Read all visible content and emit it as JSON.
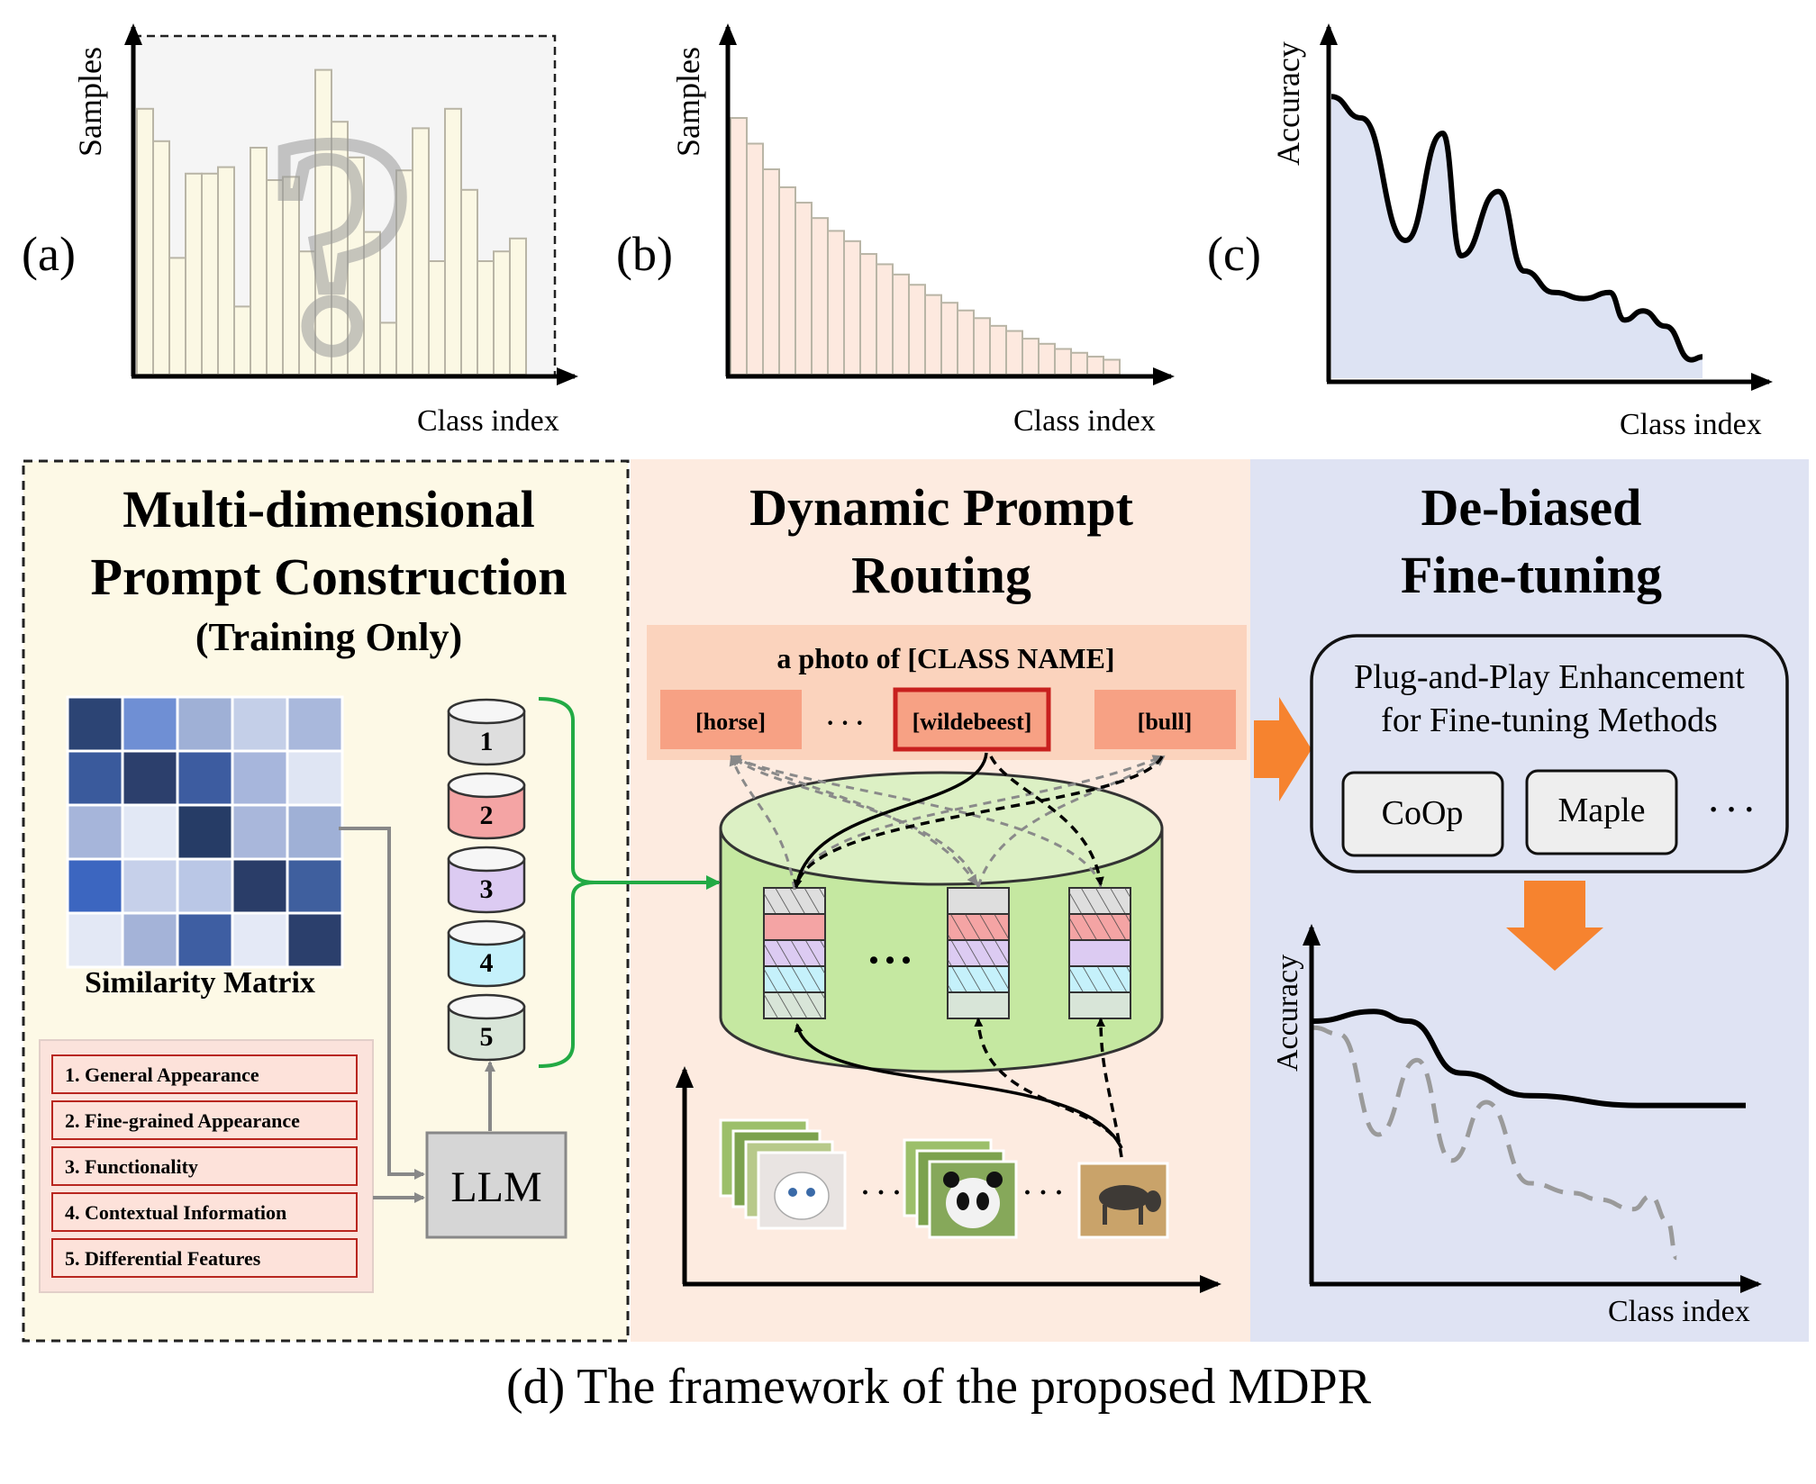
{
  "charts": {
    "a": {
      "panel_label": "(a)",
      "ylabel": "Samples",
      "xlabel": "Class index"
    },
    "b": {
      "panel_label": "(b)",
      "ylabel": "Samples",
      "xlabel": "Class index"
    },
    "c": {
      "panel_label": "(c)",
      "ylabel": "Accuracy",
      "xlabel": "Class index"
    }
  },
  "chart_data": [
    {
      "type": "bar",
      "panel": "(a)",
      "title": "",
      "xlabel": "Class index",
      "ylabel": "Samples",
      "values": [
        0.82,
        0.72,
        0.36,
        0.62,
        0.62,
        0.64,
        0.21,
        0.7,
        0.6,
        0.61,
        0.38,
        0.94,
        0.78,
        0.67,
        0.44,
        0.16,
        0.63,
        0.76,
        0.35,
        0.82,
        0.57,
        0.35,
        0.38,
        0.42
      ],
      "note_icon": "question-mark-icon"
    },
    {
      "type": "bar",
      "panel": "(b)",
      "title": "",
      "xlabel": "Class index",
      "ylabel": "Samples",
      "values": [
        1.0,
        0.9,
        0.8,
        0.73,
        0.67,
        0.61,
        0.56,
        0.52,
        0.47,
        0.43,
        0.39,
        0.35,
        0.31,
        0.28,
        0.25,
        0.22,
        0.19,
        0.17,
        0.14,
        0.12,
        0.1,
        0.085,
        0.07,
        0.058
      ]
    },
    {
      "type": "area",
      "panel": "(c)",
      "title": "",
      "xlabel": "Class index",
      "ylabel": "Accuracy",
      "x": [
        0,
        0.08,
        0.2,
        0.3,
        0.35,
        0.45,
        0.52,
        0.6,
        0.68,
        0.75,
        0.79,
        0.84,
        0.9,
        0.97,
        1.0
      ],
      "y": [
        0.92,
        0.85,
        0.45,
        0.8,
        0.4,
        0.61,
        0.35,
        0.28,
        0.26,
        0.28,
        0.19,
        0.22,
        0.17,
        0.06,
        0.07
      ]
    }
  ],
  "sections": {
    "left": {
      "title_line1": "Multi-dimensional",
      "title_line2": "Prompt Construction",
      "subtitle": "(Training Only)",
      "matrix_label": "Similarity Matrix",
      "prompts": [
        "1. General Appearance",
        "2. Fine-grained Appearance",
        "3. Functionality",
        "4. Contextual Information",
        "5. Differential Features"
      ],
      "llm_label": "LLM",
      "db_numbers": [
        "1",
        "2",
        "3",
        "4",
        "5"
      ]
    },
    "middle": {
      "title_line1": "Dynamic Prompt",
      "title_line2": "Routing",
      "template": "a photo of [CLASS NAME]",
      "class_tokens": [
        "[horse]",
        "[wildebeest]",
        "[bull]"
      ],
      "ellipsis": "· · ·",
      "db_ellipsis": "• • •"
    },
    "right": {
      "title_line1": "De-biased",
      "title_line2": "Fine-tuning",
      "box_line1": "Plug-and-Play Enhancement",
      "box_line2": "for Fine-tuning Methods",
      "methods": [
        "CoOp",
        "Maple"
      ],
      "methods_ellipsis": "· · ·",
      "ylabel": "Accuracy",
      "xlabel": "Class index"
    }
  },
  "caption": "(d) The framework of the proposed MDPR",
  "colors": {
    "left_bg": "#fdf9e6",
    "middle_bg": "#fdebe0",
    "right_bg": "#dfe3f3",
    "arrow_orange": "#f6832f",
    "bracket_green": "#22aa44",
    "cylinder_green": "#c5e8a1",
    "token_red": "#c8201e"
  }
}
